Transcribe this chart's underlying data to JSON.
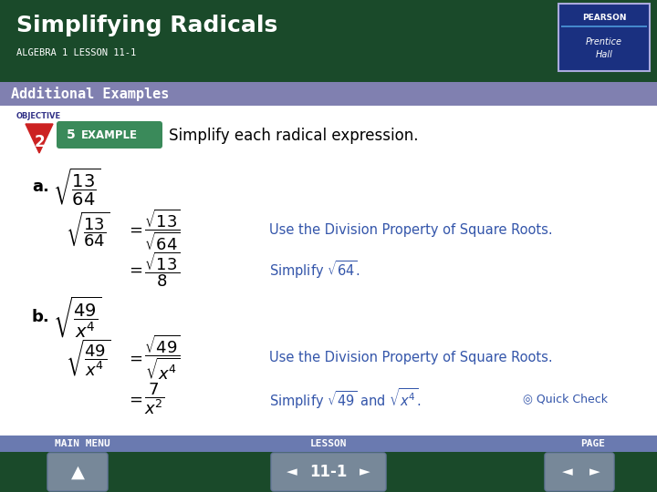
{
  "title": "Simplifying Radicals",
  "subtitle": "ALGEBRA 1 LESSON 11-1",
  "header_bg": "#1a4a2a",
  "banner_text": "Additional Examples",
  "banner_bg": "#8080b0",
  "footer_bg": "#1a4a2a",
  "footer_nav_bg": "#6a7ab0",
  "body_bg": "#ffffff",
  "blue_text": "#3355aa",
  "black_text": "#000000",
  "white_text": "#ffffff",
  "lesson_num": "11-1",
  "objective_num": "2",
  "example_num": "5",
  "instruction": "Simplify each radical expression.",
  "main_menu": "MAIN MENU",
  "lesson_label": "LESSON",
  "page_label": "PAGE",
  "quick_check": "Quick Check"
}
